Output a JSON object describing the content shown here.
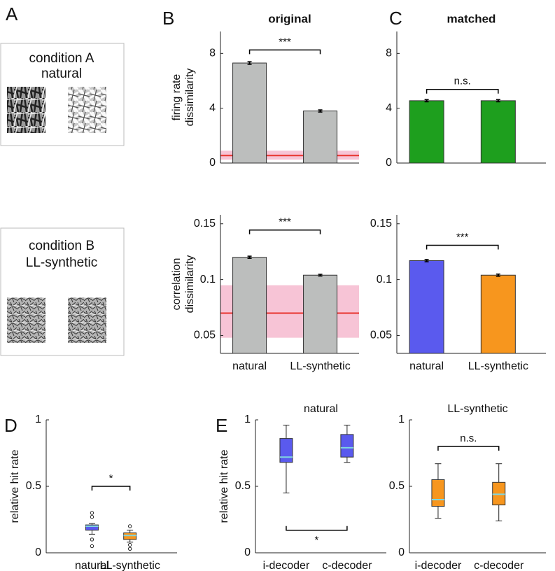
{
  "panel_labels": [
    "A",
    "B",
    "C",
    "D",
    "E"
  ],
  "conditions": [
    {
      "title": "condition A",
      "subtitle": "natural"
    },
    {
      "title": "condition B",
      "subtitle": "LL-synthetic"
    }
  ],
  "chart_data": [
    {
      "type": "bar",
      "title": "original",
      "ylabel": [
        "firing rate",
        "dissimilarity"
      ],
      "categories": [
        null,
        null
      ],
      "values": [
        7.3,
        3.8
      ],
      "errors": [
        0.1,
        0.08
      ],
      "colors": [
        "#bcbebd",
        "#bcbebd"
      ],
      "ylim": [
        0,
        9.6
      ],
      "yticks": [
        0,
        4,
        8
      ],
      "reference": {
        "value": 0.55,
        "band": [
          0.25,
          0.9
        ],
        "color": "#e8342f",
        "band_color": "#f7c4d6"
      },
      "annotation": "***"
    },
    {
      "type": "bar",
      "title": "matched",
      "categories": [
        null,
        null
      ],
      "values": [
        4.55,
        4.55
      ],
      "errors": [
        0.08,
        0.08
      ],
      "colors": [
        "#1e9f1e",
        "#1e9f1e"
      ],
      "ylim": [
        0,
        9.6
      ],
      "yticks": [
        0,
        4,
        8
      ],
      "annotation": "n.s."
    },
    {
      "type": "bar",
      "ylabel": [
        "correlation",
        "dissimilarity"
      ],
      "categories": [
        "natural",
        "LL-synthetic"
      ],
      "values": [
        0.12,
        0.104
      ],
      "errors": [
        0.001,
        0.0008
      ],
      "colors": [
        "#bcbebd",
        "#bcbebd"
      ],
      "ylim": [
        0.034,
        0.158
      ],
      "yticks": [
        0.05,
        0.1,
        0.15
      ],
      "reference": {
        "value": 0.07,
        "band": [
          0.048,
          0.095
        ],
        "color": "#e8342f",
        "band_color": "#f7c4d6"
      },
      "annotation": "***"
    },
    {
      "type": "bar",
      "categories": [
        "natural",
        "LL-synthetic"
      ],
      "values": [
        0.117,
        0.104
      ],
      "errors": [
        0.001,
        0.001
      ],
      "colors": [
        "#5a5aee",
        "#f7961e"
      ],
      "ylim": [
        0.034,
        0.158
      ],
      "yticks": [
        0.05,
        0.1,
        0.15
      ],
      "annotation": "***"
    },
    {
      "type": "box",
      "ylabel": "relative hit rate",
      "categories": [
        "natural",
        "LL-synthetic"
      ],
      "boxes": [
        {
          "whislo": 0.14,
          "q1": 0.17,
          "med": 0.2,
          "q3": 0.21,
          "whishi": 0.22,
          "fliers": [
            0.3,
            0.27,
            0.1,
            0.05
          ]
        },
        {
          "whislo": 0.08,
          "q1": 0.1,
          "med": 0.13,
          "q3": 0.15,
          "whishi": 0.17,
          "fliers": [
            0.2,
            0.06,
            0.03
          ]
        }
      ],
      "colors": [
        "#5a5aee",
        "#f7961e"
      ],
      "median_color": "#7fd6e0",
      "ylim": [
        0,
        1
      ],
      "yticks": [
        0,
        0.5,
        1
      ],
      "annotation": "*"
    },
    {
      "type": "box",
      "title": "natural",
      "ylabel": "relative hit rate",
      "categories": [
        "i-decoder",
        "c-decoder"
      ],
      "boxes": [
        {
          "whislo": 0.45,
          "q1": 0.68,
          "med": 0.72,
          "q3": 0.86,
          "whishi": 0.96,
          "fliers": []
        },
        {
          "whislo": 0.68,
          "q1": 0.72,
          "med": 0.79,
          "q3": 0.89,
          "whishi": 0.96,
          "fliers": []
        }
      ],
      "colors": [
        "#5a5aee",
        "#5a5aee"
      ],
      "median_color": "#7fd6e0",
      "ylim": [
        0,
        1
      ],
      "yticks": [
        0,
        0.5,
        1
      ],
      "annotation": "*"
    },
    {
      "type": "box",
      "title": "LL-synthetic",
      "categories": [
        "i-decoder",
        "c-decoder"
      ],
      "boxes": [
        {
          "whislo": 0.26,
          "q1": 0.35,
          "med": 0.4,
          "q3": 0.55,
          "whishi": 0.67,
          "fliers": []
        },
        {
          "whislo": 0.24,
          "q1": 0.36,
          "med": 0.44,
          "q3": 0.53,
          "whishi": 0.67,
          "fliers": []
        }
      ],
      "colors": [
        "#f7961e",
        "#f7961e"
      ],
      "median_color": "#7fd6e0",
      "ylim": [
        0,
        1
      ],
      "yticks": [
        0,
        0.5,
        1
      ],
      "annotation": "n.s."
    }
  ]
}
